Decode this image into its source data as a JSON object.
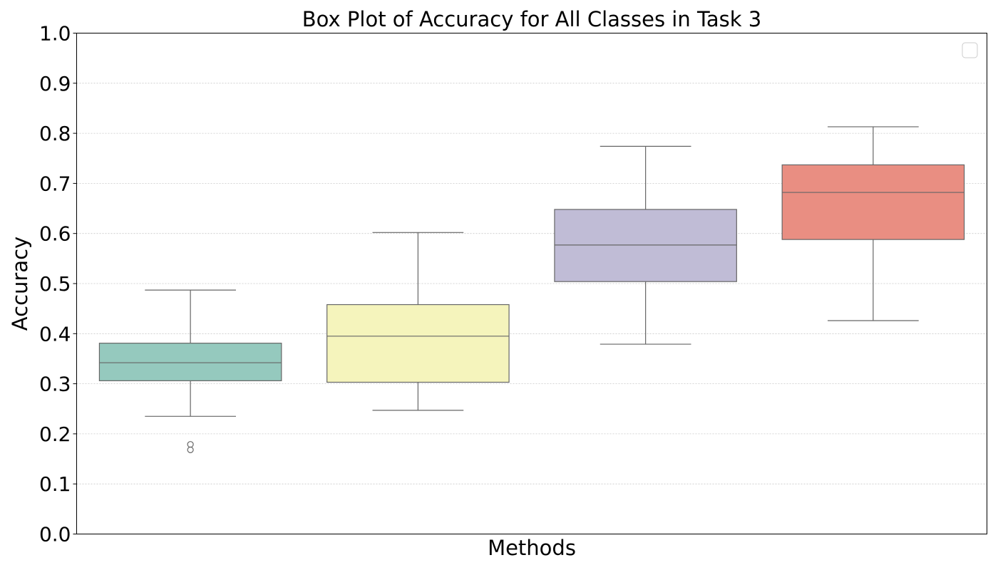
{
  "chart_data": {
    "type": "box",
    "title": "Box Plot of Accuracy for All Classes in Task 3",
    "xlabel": "Methods",
    "ylabel": "Accuracy",
    "ylim": [
      0.0,
      1.0
    ],
    "yticks": [
      "0.0",
      "0.1",
      "0.2",
      "0.3",
      "0.4",
      "0.5",
      "0.6",
      "0.7",
      "0.8",
      "0.9",
      "1.0"
    ],
    "grid": "horizontal-dotted",
    "legend": {
      "placement": "top-right",
      "entries": []
    },
    "boxes": [
      {
        "whisker_low": 0.235,
        "q1": 0.306,
        "median": 0.342,
        "q3": 0.381,
        "whisker_high": 0.487,
        "outliers": [
          0.168,
          0.179
        ],
        "color": "#95c9be"
      },
      {
        "whisker_low": 0.247,
        "q1": 0.303,
        "median": 0.395,
        "q3": 0.458,
        "whisker_high": 0.602,
        "outliers": [],
        "color": "#f5f4bc"
      },
      {
        "whisker_low": 0.379,
        "q1": 0.504,
        "median": 0.577,
        "q3": 0.648,
        "whisker_high": 0.774,
        "outliers": [],
        "color": "#c0bcd6"
      },
      {
        "whisker_low": 0.426,
        "q1": 0.588,
        "median": 0.682,
        "q3": 0.737,
        "whisker_high": 0.813,
        "outliers": [],
        "color": "#e98e82"
      }
    ]
  }
}
